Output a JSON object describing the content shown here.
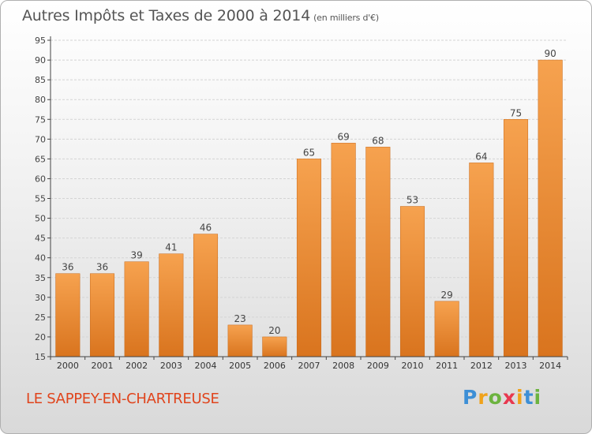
{
  "header": {
    "title": "Autres Impôts et Taxes de 2000 à 2014",
    "unit": "(en milliers d'€)"
  },
  "footer": {
    "commune": "LE SAPPEY-EN-CHARTREUSE",
    "logo_letters": [
      "P",
      "r",
      "o",
      "x",
      "i",
      "t",
      "i"
    ],
    "logo_colors": [
      "#3d8fd6",
      "#f0a21a",
      "#6cb33f",
      "#e8384f",
      "#f0a21a",
      "#3d8fd6",
      "#6cb33f"
    ]
  },
  "colors": {
    "bar_light": "#f6a24f",
    "bar_dark": "#d9741e",
    "commune": "#e0441c",
    "text": "#555555"
  },
  "chart_data": {
    "type": "bar",
    "categories": [
      "2000",
      "2001",
      "2002",
      "2003",
      "2004",
      "2005",
      "2006",
      "2007",
      "2008",
      "2009",
      "2010",
      "2011",
      "2012",
      "2013",
      "2014"
    ],
    "values": [
      36,
      36,
      39,
      41,
      46,
      23,
      20,
      65,
      69,
      68,
      53,
      29,
      64,
      75,
      90
    ],
    "title": "Autres Impôts et Taxes de 2000 à 2014",
    "xlabel": "",
    "ylabel": "",
    "ylim": [
      15,
      95
    ],
    "yticks": [
      15,
      20,
      25,
      30,
      35,
      40,
      45,
      50,
      55,
      60,
      65,
      70,
      75,
      80,
      85,
      90,
      95
    ],
    "grid": true,
    "data_labels": true
  }
}
